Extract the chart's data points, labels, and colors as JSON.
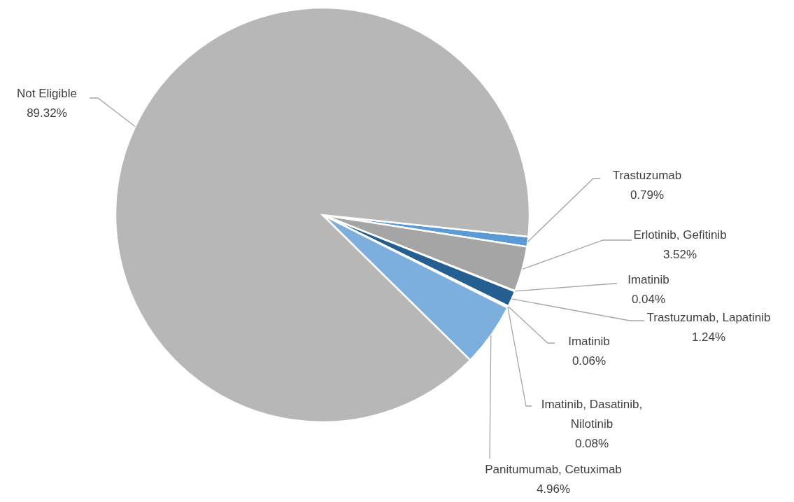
{
  "chart_data": {
    "type": "pie",
    "categories": [
      "Trastuzumab",
      "Erlotinib, Gefitinib",
      "Imatinib",
      "Trastuzumab, Lapatinib",
      "Imatinib",
      "Imatinib, Dasatinib, Nilotinib",
      "Panitumumab, Cetuximab",
      "Not Eligible"
    ],
    "values": [
      0.79,
      3.52,
      0.04,
      1.24,
      0.06,
      0.08,
      4.96,
      89.32
    ],
    "value_labels": [
      "0.79%",
      "3.52%",
      "0.04%",
      "1.24%",
      "0.06%",
      "0.08%",
      "4.96%",
      "89.32%"
    ],
    "colors": [
      "#5b9bd5",
      "#a5a5a5",
      "#4472c4",
      "#255e91",
      "#9e480e",
      "#636363",
      "#7cafdd",
      "#b7b7b7"
    ]
  }
}
